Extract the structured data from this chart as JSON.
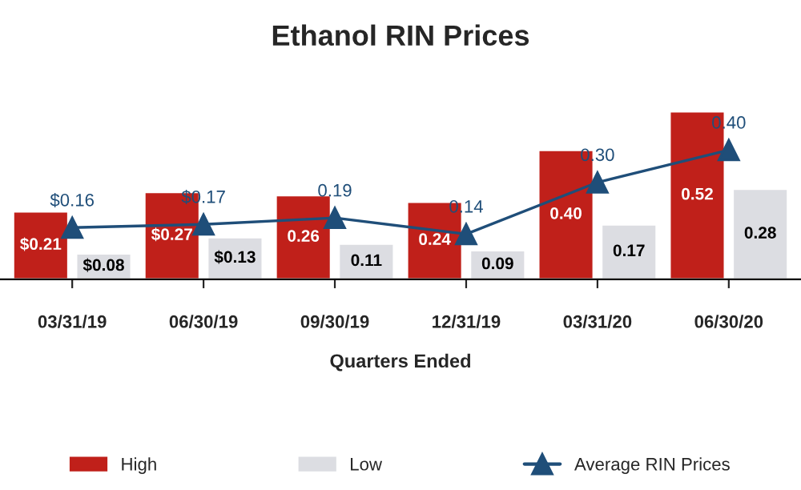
{
  "chart_data": {
    "type": "bar",
    "title": "Ethanol RIN Prices",
    "xlabel": "Quarters Ended",
    "categories": [
      "03/31/19",
      "06/30/19",
      "09/30/19",
      "12/31/19",
      "03/31/20",
      "06/30/20"
    ],
    "series": [
      {
        "name": "High",
        "color": "#c0201a",
        "values": [
          0.21,
          0.27,
          0.26,
          0.24,
          0.4,
          0.52
        ],
        "value_labels": [
          "$0.21",
          "$0.27",
          "0.26",
          "0.24",
          "0.40",
          "0.52"
        ]
      },
      {
        "name": "Low",
        "color": "#dcdde2",
        "values": [
          0.08,
          0.13,
          0.11,
          0.09,
          0.17,
          0.28
        ],
        "value_labels": [
          "$0.08",
          "$0.13",
          "0.11",
          "0.09",
          "0.17",
          "0.28"
        ]
      },
      {
        "name": "Average RIN Prices",
        "type": "line",
        "color": "#1f4e79",
        "values": [
          0.16,
          0.17,
          0.19,
          0.14,
          0.3,
          0.4
        ],
        "value_labels": [
          "$0.16",
          "$0.17",
          "0.19",
          "0.14",
          "0.30",
          "0.40"
        ],
        "marker": "triangle"
      }
    ],
    "legend": "bottom",
    "tick_labels": "x",
    "grid": false
  }
}
